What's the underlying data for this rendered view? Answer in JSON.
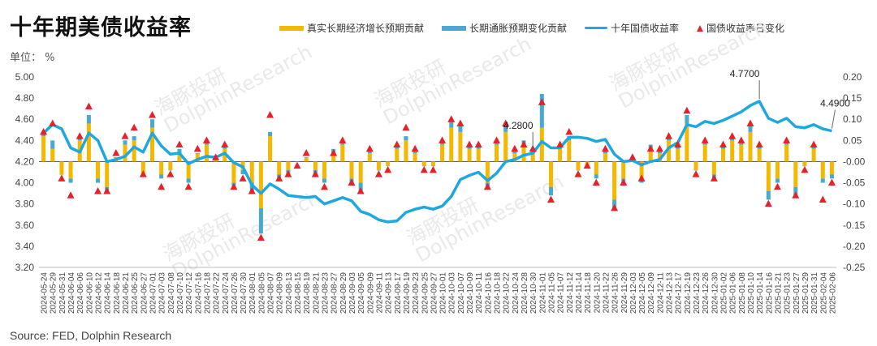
{
  "title": "十年期美债收益率",
  "unit_label": "单位： %",
  "source": "Source: FED, Dolphin Research",
  "watermark": [
    "海豚投研",
    "DolphinResearch"
  ],
  "colors": {
    "real_bar": "#f5b800",
    "infl_bar": "#4aa9cf",
    "yield_line": "#1fa7e0",
    "change_marker": "#e8202a",
    "zero_line": "#3a5bb0"
  },
  "chart_data": {
    "type": "bar+line",
    "legend": [
      "真实长期经济增长预期贡献",
      "长期通胀预期变化贡献",
      "十年国债收益率",
      "国债收益率日变化"
    ],
    "y_left": {
      "min": 3.2,
      "max": 5.0,
      "step": 0.2
    },
    "y_right": {
      "min": -0.25,
      "max": 0.2,
      "step": 0.05
    },
    "x_ticks": [
      "2024-05-24",
      "2024-05-29",
      "2024-05-31",
      "2024-06-04",
      "2024-06-06",
      "2024-06-10",
      "2024-06-12",
      "2024-06-14",
      "2024-06-18",
      "2024-06-21",
      "2024-06-25",
      "2024-06-27",
      "2024-07-01",
      "2024-07-03",
      "2024-07-08",
      "2024-07-10",
      "2024-07-12",
      "2024-07-16",
      "2024-07-18",
      "2024-07-22",
      "2024-07-24",
      "2024-07-26",
      "2024-07-30",
      "2024-08-01",
      "2024-08-05",
      "2024-08-07",
      "2024-08-09",
      "2024-08-13",
      "2024-08-15",
      "2024-08-19",
      "2024-08-21",
      "2024-08-23",
      "2024-08-27",
      "2024-08-29",
      "2024-09-03",
      "2024-09-05",
      "2024-09-09",
      "2024-09-11",
      "2024-09-13",
      "2024-09-17",
      "2024-09-19",
      "2024-09-23",
      "2024-09-25",
      "2024-09-27",
      "2024-10-01",
      "2024-10-03",
      "2024-10-07",
      "2024-10-09",
      "2024-10-11",
      "2024-10-16",
      "2024-10-18",
      "2024-10-22",
      "2024-10-24",
      "2024-10-28",
      "2024-10-30",
      "2024-11-01",
      "2024-11-05",
      "2024-11-07",
      "2024-11-12",
      "2024-11-14",
      "2024-11-18",
      "2024-11-20",
      "2024-11-22",
      "2024-11-26",
      "2024-11-29",
      "2024-12-03",
      "2024-12-05",
      "2024-12-09",
      "2024-12-11",
      "2024-12-13",
      "2024-12-17",
      "2024-12-19",
      "2024-12-23",
      "2024-12-26",
      "2024-12-30",
      "2025-01-02",
      "2025-01-06",
      "2025-01-08",
      "2025-01-10",
      "2025-01-14",
      "2025-01-16",
      "2025-01-21",
      "2025-01-23",
      "2025-01-27",
      "2025-01-29",
      "2025-01-31",
      "2025-02-04",
      "2025-02-06"
    ],
    "yield": [
      4.47,
      4.55,
      4.51,
      4.33,
      4.29,
      4.47,
      4.4,
      4.2,
      4.22,
      4.25,
      4.34,
      4.29,
      4.47,
      4.35,
      4.27,
      4.28,
      4.18,
      4.22,
      4.25,
      4.24,
      4.28,
      4.19,
      4.15,
      3.98,
      3.9,
      3.99,
      3.94,
      3.88,
      3.87,
      3.86,
      3.87,
      3.8,
      3.83,
      3.86,
      3.83,
      3.73,
      3.7,
      3.65,
      3.63,
      3.64,
      3.72,
      3.75,
      3.77,
      3.75,
      3.78,
      3.87,
      4.03,
      4.07,
      4.1,
      4.02,
      4.09,
      4.2,
      4.22,
      4.26,
      4.28,
      4.39,
      4.33,
      4.33,
      4.43,
      4.43,
      4.42,
      4.39,
      4.41,
      4.27,
      4.2,
      4.21,
      4.17,
      4.2,
      4.22,
      4.33,
      4.38,
      4.55,
      4.53,
      4.58,
      4.56,
      4.59,
      4.63,
      4.67,
      4.73,
      4.77,
      4.61,
      4.57,
      4.61,
      4.53,
      4.52,
      4.55,
      4.51,
      4.49
    ],
    "real_contrib": [
      0.06,
      0.03,
      -0.03,
      -0.04,
      0.05,
      0.09,
      -0.04,
      -0.06,
      0.01,
      0.04,
      0.05,
      -0.03,
      0.08,
      -0.03,
      -0.02,
      0.02,
      -0.04,
      0.02,
      0.04,
      0.01,
      0.03,
      -0.05,
      -0.02,
      -0.05,
      -0.11,
      0.06,
      -0.03,
      -0.02,
      0.0,
      0.01,
      -0.02,
      -0.04,
      0.02,
      0.04,
      -0.04,
      -0.05,
      0.02,
      -0.02,
      -0.01,
      0.03,
      0.05,
      0.02,
      -0.01,
      -0.01,
      0.04,
      0.08,
      0.07,
      0.03,
      0.03,
      -0.05,
      0.04,
      0.07,
      0.02,
      0.04,
      0.02,
      0.08,
      -0.06,
      0.03,
      0.05,
      -0.02,
      -0.01,
      -0.03,
      0.02,
      -0.09,
      -0.04,
      0.01,
      -0.04,
      0.03,
      0.02,
      0.05,
      0.03,
      0.09,
      -0.02,
      0.04,
      -0.03,
      0.03,
      0.05,
      0.04,
      0.07,
      0.03,
      -0.07,
      -0.04,
      0.04,
      -0.06,
      -0.01,
      0.03,
      -0.04,
      -0.03
    ],
    "infl_contrib": [
      0.01,
      0.02,
      0.0,
      -0.01,
      0.01,
      0.02,
      -0.01,
      -0.01,
      0.0,
      0.01,
      0.01,
      0.0,
      0.02,
      -0.01,
      0.0,
      0.01,
      -0.01,
      0.0,
      0.01,
      0.0,
      0.01,
      -0.01,
      -0.01,
      -0.02,
      -0.06,
      0.01,
      -0.01,
      -0.01,
      0.0,
      0.0,
      -0.01,
      -0.01,
      0.01,
      0.01,
      -0.01,
      -0.02,
      0.01,
      0.0,
      0.0,
      0.01,
      0.01,
      0.01,
      0.0,
      0.0,
      0.01,
      0.02,
      0.02,
      0.01,
      0.01,
      -0.01,
      0.01,
      0.02,
      0.01,
      0.01,
      0.01,
      0.08,
      -0.02,
      0.01,
      0.01,
      0.0,
      0.0,
      -0.01,
      0.01,
      -0.02,
      -0.01,
      0.0,
      -0.01,
      0.01,
      0.01,
      0.01,
      0.01,
      0.02,
      0.0,
      0.01,
      -0.01,
      0.01,
      0.01,
      0.01,
      0.02,
      0.01,
      -0.02,
      -0.01,
      0.01,
      -0.02,
      0.0,
      0.01,
      -0.01,
      -0.01
    ],
    "daily_change": [
      0.07,
      0.09,
      -0.04,
      -0.08,
      0.06,
      0.13,
      -0.07,
      -0.07,
      0.02,
      0.06,
      0.08,
      -0.03,
      0.11,
      -0.06,
      -0.03,
      0.04,
      -0.06,
      0.03,
      0.05,
      0.01,
      0.04,
      -0.06,
      -0.04,
      -0.07,
      -0.18,
      0.11,
      -0.04,
      -0.03,
      -0.01,
      0.02,
      -0.03,
      -0.06,
      0.02,
      0.05,
      -0.05,
      -0.07,
      0.03,
      -0.03,
      -0.02,
      0.04,
      0.08,
      0.03,
      -0.02,
      -0.02,
      0.05,
      0.1,
      0.09,
      0.04,
      0.04,
      -0.06,
      0.05,
      0.09,
      0.03,
      0.04,
      0.03,
      0.14,
      -0.09,
      0.04,
      0.07,
      -0.03,
      -0.01,
      -0.05,
      0.03,
      -0.11,
      -0.05,
      0.01,
      -0.04,
      0.03,
      0.03,
      0.06,
      0.04,
      0.12,
      -0.03,
      0.05,
      -0.04,
      0.04,
      0.06,
      0.05,
      0.09,
      0.04,
      -0.1,
      -0.06,
      0.05,
      -0.08,
      -0.02,
      0.04,
      -0.09,
      -0.05
    ],
    "annotations": [
      {
        "label": "4.2800",
        "index": 54,
        "value": 4.28
      },
      {
        "label": "4.7700",
        "index": 79,
        "value": 4.77
      },
      {
        "label": "4.4900",
        "index": 87,
        "value": 4.49
      }
    ]
  }
}
